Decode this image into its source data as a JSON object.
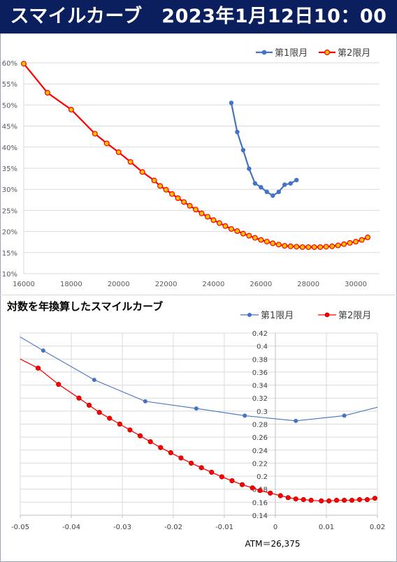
{
  "banner": {
    "title": "スマイルカーブ　2023年1月12日10：00"
  },
  "chart_data": [
    {
      "type": "line",
      "title": "",
      "xlim": [
        16000,
        31000
      ],
      "ylim": [
        0.1,
        0.6
      ],
      "x_ticks": [
        16000,
        18000,
        20000,
        22000,
        24000,
        26000,
        28000,
        30000
      ],
      "x_tick_labels": [
        "16000",
        "18000",
        "20000",
        "22000",
        "24000",
        "26000",
        "28000",
        "30000"
      ],
      "y_ticks": [
        0.1,
        0.15,
        0.2,
        0.25,
        0.3,
        0.35,
        0.4,
        0.45,
        0.5,
        0.55,
        0.6
      ],
      "y_tick_labels": [
        "10%",
        "15%",
        "20%",
        "25%",
        "30%",
        "35%",
        "40%",
        "45%",
        "50%",
        "55%",
        "60%"
      ],
      "grid": true,
      "legend": "top-right",
      "series": [
        {
          "name": "第1限月",
          "color": "#4472c4",
          "x": [
            24750,
            25000,
            25250,
            25500,
            25750,
            26000,
            26250,
            26500,
            26750,
            27000,
            27250,
            27500
          ],
          "y": [
            0.505,
            0.436,
            0.393,
            0.349,
            0.314,
            0.305,
            0.294,
            0.285,
            0.294,
            0.311,
            0.314,
            0.322
          ]
        },
        {
          "name": "第2限月",
          "color": "#ff0000",
          "x": [
            16000,
            17000,
            18000,
            19000,
            19500,
            20000,
            20500,
            21000,
            21500,
            21750,
            22000,
            22250,
            22500,
            22750,
            23000,
            23250,
            23500,
            23750,
            24000,
            24250,
            24500,
            24750,
            25000,
            25250,
            25500,
            25750,
            26000,
            26250,
            26500,
            26750,
            27000,
            27250,
            27500,
            27750,
            28000,
            28250,
            28500,
            28750,
            29000,
            29250,
            29500,
            29750,
            30000,
            30250,
            30500
          ],
          "y": [
            0.598,
            0.529,
            0.489,
            0.432,
            0.409,
            0.388,
            0.365,
            0.341,
            0.321,
            0.308,
            0.299,
            0.289,
            0.279,
            0.27,
            0.261,
            0.252,
            0.243,
            0.235,
            0.227,
            0.22,
            0.213,
            0.206,
            0.201,
            0.195,
            0.19,
            0.185,
            0.18,
            0.176,
            0.172,
            0.169,
            0.166,
            0.165,
            0.164,
            0.163,
            0.163,
            0.163,
            0.163,
            0.164,
            0.165,
            0.167,
            0.17,
            0.173,
            0.176,
            0.18,
            0.186
          ]
        }
      ]
    },
    {
      "type": "line",
      "title": "対数を年換算したスマイルカーブ",
      "xlim": [
        -0.05,
        0.02
      ],
      "ylim": [
        0.14,
        0.42
      ],
      "x_ticks": [
        -0.05,
        -0.04,
        -0.03,
        -0.02,
        -0.01,
        0,
        0.01,
        0.02
      ],
      "x_tick_labels": [
        "-0.05",
        "-0.04",
        "-0.03",
        "-0.02",
        "-0.01",
        "0",
        "0.01",
        "0.02"
      ],
      "y_ticks": [
        0.14,
        0.16,
        0.18,
        0.2,
        0.22,
        0.24,
        0.26,
        0.28,
        0.3,
        0.32,
        0.34,
        0.36,
        0.38,
        0.4,
        0.42
      ],
      "y_tick_labels": [
        "0.14",
        "0.16",
        "0.18",
        "0.2",
        "0.22",
        "0.24",
        "0.26",
        "0.28",
        "0.3",
        "0.32",
        "0.34",
        "0.36",
        "0.38",
        "0.4",
        "0.42"
      ],
      "grid": true,
      "legend": "top-right",
      "annotation": "ATM＝26,375",
      "series": [
        {
          "name": "第1限月",
          "color": "#4472c4",
          "x": [
            -0.0535,
            -0.0455,
            -0.0355,
            -0.0255,
            -0.0155,
            -0.006,
            0.004,
            0.0135,
            0.023
          ],
          "y": [
            0.43,
            0.393,
            0.348,
            0.315,
            0.304,
            0.293,
            0.285,
            0.293,
            0.312
          ],
          "marker_from": 1
        },
        {
          "name": "第2限月",
          "color": "#ff0000",
          "x": [
            -0.05,
            -0.0465,
            -0.0425,
            -0.0385,
            -0.0365,
            -0.0345,
            -0.0325,
            -0.0305,
            -0.0285,
            -0.0265,
            -0.0245,
            -0.0225,
            -0.0205,
            -0.0185,
            -0.0165,
            -0.0145,
            -0.0125,
            -0.0105,
            -0.0085,
            -0.0065,
            -0.0045,
            -0.003,
            -0.001,
            0.001,
            0.0025,
            0.004,
            0.0055,
            0.007,
            0.009,
            0.0105,
            0.012,
            0.0135,
            0.015,
            0.0165,
            0.018,
            0.0195,
            0.021
          ],
          "y": [
            0.38,
            0.366,
            0.341,
            0.32,
            0.309,
            0.298,
            0.289,
            0.28,
            0.271,
            0.262,
            0.253,
            0.244,
            0.236,
            0.228,
            0.22,
            0.213,
            0.206,
            0.199,
            0.193,
            0.187,
            0.182,
            0.178,
            0.174,
            0.17,
            0.167,
            0.165,
            0.164,
            0.163,
            0.162,
            0.162,
            0.163,
            0.163,
            0.163,
            0.164,
            0.164,
            0.166,
            0.168
          ],
          "marker_from": 1
        }
      ]
    }
  ]
}
